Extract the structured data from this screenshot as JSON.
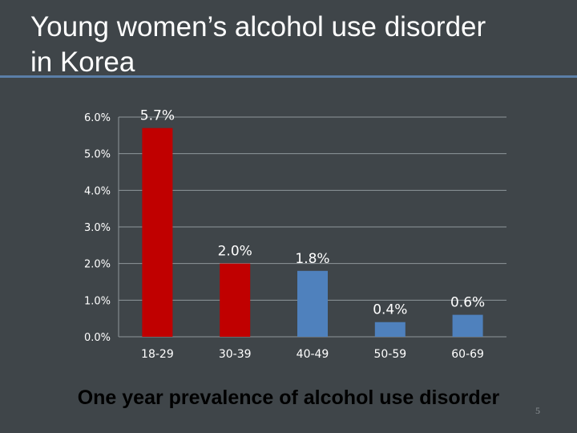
{
  "slide": {
    "title_line1": "Young women’s  alcohol use disorder",
    "title_line2": "in Korea",
    "caption": "One year prevalence of alcohol use disorder",
    "page_number": "5"
  },
  "colors": {
    "background": "#3f4549",
    "title_rule": "#5b7fa8",
    "bar_red": "#c00000",
    "bar_blue": "#4f81bd",
    "gridline": "#8f969a"
  },
  "chart_data": {
    "type": "bar",
    "categories": [
      "18-29",
      "30-39",
      "40-49",
      "50-59",
      "60-69"
    ],
    "values": [
      5.7,
      2.0,
      1.8,
      0.4,
      0.6
    ],
    "data_labels": [
      "5.7%",
      "2.0%",
      "1.8%",
      "0.4%",
      "0.6%"
    ],
    "bar_colors": [
      "#c00000",
      "#c00000",
      "#4f81bd",
      "#4f81bd",
      "#4f81bd"
    ],
    "y_ticks": [
      "0.0%",
      "1.0%",
      "2.0%",
      "3.0%",
      "4.0%",
      "5.0%",
      "6.0%"
    ],
    "ylim": [
      0,
      6
    ],
    "grid": true,
    "legend": "none",
    "title": "",
    "xlabel": "",
    "ylabel": ""
  }
}
